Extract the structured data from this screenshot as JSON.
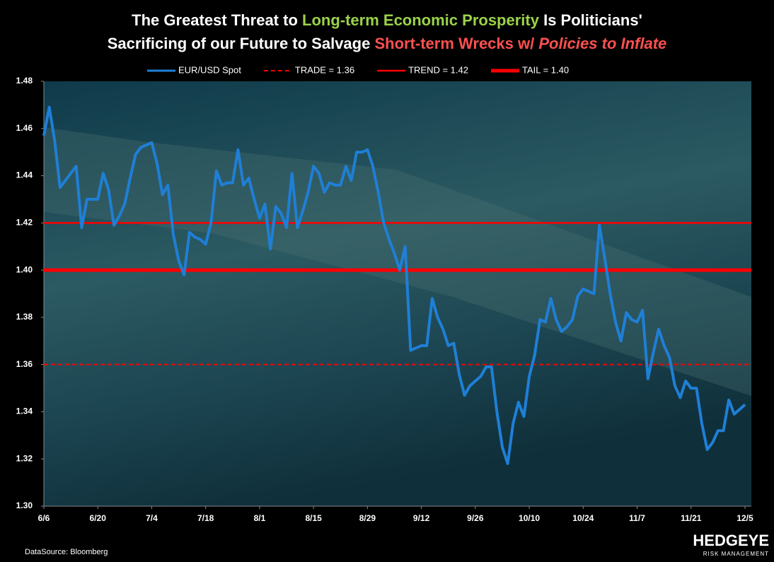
{
  "chart_data": {
    "type": "line",
    "title_lines": [
      [
        {
          "text": "The Greatest Threat to ",
          "color": "#ffffff"
        },
        {
          "text": "Long-term Economic Prosperity",
          "color": "#9bd24a"
        },
        {
          "text": " Is Politicians'",
          "color": "#ffffff"
        }
      ],
      [
        {
          "text": "Sacrificing of our Future to Salvage ",
          "color": "#ffffff"
        },
        {
          "text": "Short-term Wrecks w/ ",
          "color": "#ff5050"
        },
        {
          "text": "Policies to Inflate",
          "color": "#ff5050",
          "italic": true
        }
      ]
    ],
    "categories": [
      "6/6",
      null,
      null,
      null,
      null,
      null,
      null,
      null,
      null,
      null,
      "6/20",
      null,
      null,
      null,
      null,
      null,
      null,
      null,
      null,
      null,
      "7/4",
      null,
      null,
      null,
      null,
      null,
      null,
      null,
      null,
      null,
      "7/18",
      null,
      null,
      null,
      null,
      null,
      null,
      null,
      null,
      null,
      "8/1",
      null,
      null,
      null,
      null,
      null,
      null,
      null,
      null,
      null,
      "8/15",
      null,
      null,
      null,
      null,
      null,
      null,
      null,
      null,
      null,
      "8/29",
      null,
      null,
      null,
      null,
      null,
      null,
      null,
      null,
      null,
      "9/12",
      null,
      null,
      null,
      null,
      null,
      null,
      null,
      null,
      null,
      "9/26",
      null,
      null,
      null,
      null,
      null,
      null,
      null,
      null,
      null,
      "10/10",
      null,
      null,
      null,
      null,
      null,
      null,
      null,
      null,
      null,
      "10/24",
      null,
      null,
      null,
      null,
      null,
      null,
      null,
      null,
      null,
      "11/7",
      null,
      null,
      null,
      null,
      null,
      null,
      null,
      null,
      null,
      "11/21",
      null,
      null,
      null,
      null,
      null,
      null,
      null,
      null,
      null,
      "12/5"
    ],
    "series": [
      {
        "name": "EUR/USD Spot",
        "color": "#1f7fd6",
        "values": [
          1.457,
          1.469,
          1.455,
          1.435,
          1.438,
          1.441,
          1.444,
          1.418,
          1.43,
          1.43,
          1.43,
          1.441,
          1.434,
          1.419,
          1.423,
          1.428,
          1.439,
          1.449,
          1.452,
          1.453,
          1.454,
          1.445,
          1.432,
          1.436,
          1.415,
          1.404,
          1.398,
          1.416,
          1.414,
          1.413,
          1.411,
          1.42,
          1.442,
          1.436,
          1.437,
          1.437,
          1.451,
          1.436,
          1.439,
          1.43,
          1.422,
          1.428,
          1.409,
          1.427,
          1.424,
          1.418,
          1.441,
          1.418,
          1.425,
          1.433,
          1.444,
          1.441,
          1.433,
          1.437,
          1.436,
          1.436,
          1.444,
          1.438,
          1.45,
          1.45,
          1.451,
          1.444,
          1.433,
          1.42,
          1.413,
          1.407,
          1.4,
          1.41,
          1.366,
          1.367,
          1.368,
          1.368,
          1.388,
          1.38,
          1.375,
          1.368,
          1.369,
          1.356,
          1.347,
          1.351,
          1.353,
          1.355,
          1.359,
          1.359,
          1.34,
          1.325,
          1.318,
          1.335,
          1.344,
          1.338,
          1.355,
          1.364,
          1.379,
          1.378,
          1.388,
          1.379,
          1.374,
          1.376,
          1.379,
          1.389,
          1.392,
          1.391,
          1.39,
          1.419,
          1.405,
          1.39,
          1.378,
          1.37,
          1.382,
          1.379,
          1.378,
          1.383,
          1.354,
          1.365,
          1.375,
          1.368,
          1.363,
          1.351,
          1.346,
          1.353,
          1.35,
          1.35,
          1.335,
          1.324,
          1.327,
          1.332,
          1.332,
          1.345,
          1.339,
          1.341,
          1.343
        ]
      }
    ],
    "reference_lines": [
      {
        "name": "TRADE = 1.36",
        "value": 1.36,
        "color": "#ff0000",
        "style": "dashed",
        "width": 2
      },
      {
        "name": "TREND = 1.42",
        "value": 1.42,
        "color": "#ff0000",
        "style": "solid",
        "width": 2.5
      },
      {
        "name": "TAIL = 1.40",
        "value": 1.4,
        "color": "#ff0000",
        "style": "solid",
        "width": 5
      }
    ],
    "ylim": [
      1.3,
      1.48
    ],
    "yticks": [
      {
        "value": 1.3,
        "label": "1.30"
      },
      1.32,
      1.34,
      1.36,
      1.38,
      {
        "value": 1.4,
        "label": "1.40"
      },
      1.42,
      1.44,
      1.46,
      1.48
    ],
    "source": "DataSource: Bloomberg",
    "logo": "HEDGEYE",
    "logo_sub": "RISK MANAGEMENT"
  }
}
